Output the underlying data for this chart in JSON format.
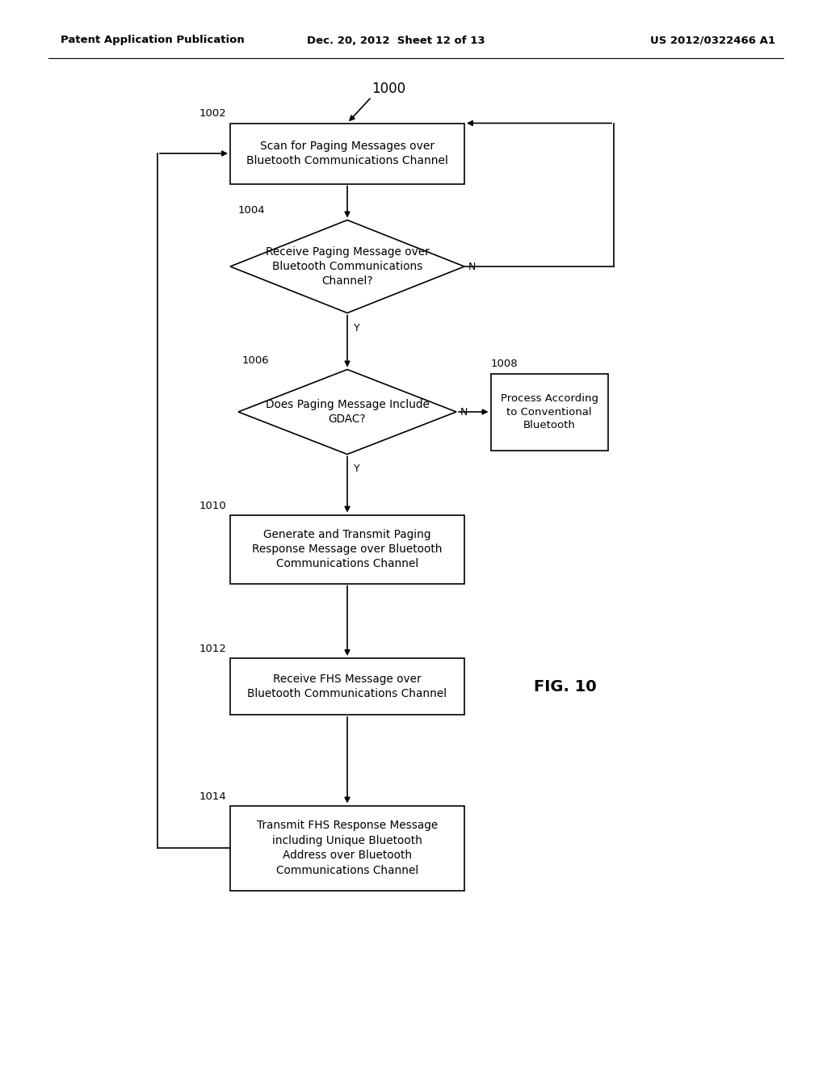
{
  "header_left": "Patent Application Publication",
  "header_mid": "Dec. 20, 2012  Sheet 12 of 13",
  "header_right": "US 2012/0322466 A1",
  "fig_label": "FIG. 10",
  "bg_color": "#ffffff",
  "box_color": "#000000",
  "text_color": "#000000",
  "line_color": "#000000",
  "lw": 1.2,
  "box1002_text": "Scan for Paging Messages over\nBluetooth Communications Channel",
  "box1002_id": "1002",
  "dia1004_text": "Receive Paging Message over\nBluetooth Communications\nChannel?",
  "dia1004_id": "1004",
  "dia1006_text": "Does Paging Message Include\nGDAC?",
  "dia1006_id": "1006",
  "box1008_text": "Process According\nto Conventional\nBluetooth",
  "box1008_id": "1008",
  "box1010_text": "Generate and Transmit Paging\nResponse Message over Bluetooth\nCommunications Channel",
  "box1010_id": "1010",
  "box1012_text": "Receive FHS Message over\nBluetooth Communications Channel",
  "box1012_id": "1012",
  "box1014_text": "Transmit FHS Response Message\nincluding Unique Bluetooth\nAddress over Bluetooth\nCommunications Channel",
  "box1014_id": "1014",
  "flow_id": "1000"
}
